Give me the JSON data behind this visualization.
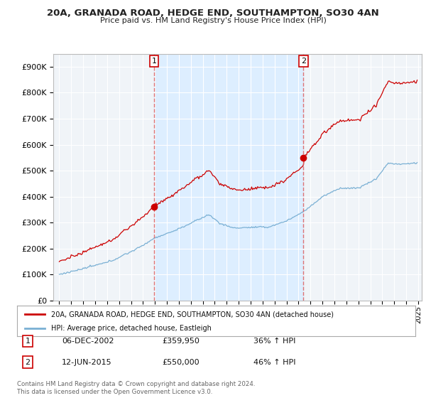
{
  "title_line1": "20A, GRANADA ROAD, HEDGE END, SOUTHAMPTON, SO30 4AN",
  "title_line2": "Price paid vs. HM Land Registry's House Price Index (HPI)",
  "legend_label_red": "20A, GRANADA ROAD, HEDGE END, SOUTHAMPTON, SO30 4AN (detached house)",
  "legend_label_blue": "HPI: Average price, detached house, Eastleigh",
  "annotation1_num": "1",
  "annotation1_date": "06-DEC-2002",
  "annotation1_price": "£359,950",
  "annotation1_hpi": "36% ↑ HPI",
  "annotation2_num": "2",
  "annotation2_date": "12-JUN-2015",
  "annotation2_price": "£550,000",
  "annotation2_hpi": "46% ↑ HPI",
  "footnote": "Contains HM Land Registry data © Crown copyright and database right 2024.\nThis data is licensed under the Open Government Licence v3.0.",
  "red_color": "#cc0000",
  "blue_color": "#7ab0d4",
  "shade_color": "#ddeeff",
  "annotation_vline_color": "#dd6666",
  "background_color": "#ffffff",
  "plot_bg_color": "#f0f4f8",
  "grid_color": "#ffffff",
  "ylim_min": 0,
  "ylim_max": 950000,
  "sale1_date": 2002.917,
  "sale2_date": 2015.417,
  "sale1_price": 359950,
  "sale2_price": 550000
}
